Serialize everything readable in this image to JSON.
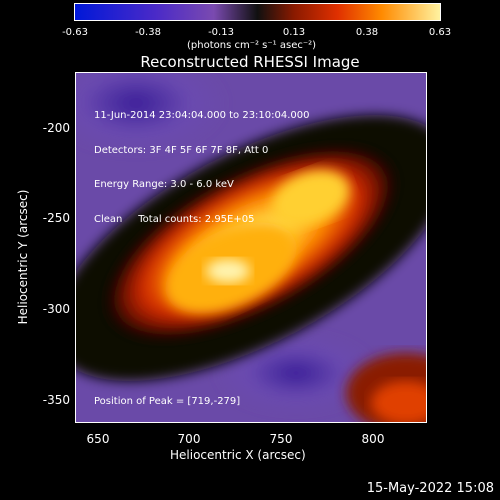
{
  "colorbar": {
    "ticks": [
      "-0.63",
      "-0.38",
      "-0.13",
      "0.13",
      "0.38",
      "0.63"
    ],
    "units": "(photons cm⁻² s⁻¹ asec⁻²)"
  },
  "title": "Reconstructed RHESSI Image",
  "info_lines": [
    "11-Jun-2014 23:04:04.000 to 23:10:04.000",
    "Detectors: 3F 4F 5F 6F 7F 8F, Att 0",
    "Energy Range: 3.0 - 6.0 keV",
    "Clean     Total counts: 2.95E+05"
  ],
  "peak_text": "Position of Peak = [719,-279]",
  "axes": {
    "xlabel": "Heliocentric X (arcsec)",
    "ylabel": "Heliocentric Y (arcsec)",
    "xticks": [
      "650",
      "700",
      "750",
      "800"
    ],
    "yticks": [
      "-200",
      "-250",
      "-300",
      "-350"
    ]
  },
  "timestamp": "15-May-2022 15:08",
  "colors": {
    "background": "#000000",
    "text": "#ffffff",
    "peak": "#fff6b0",
    "negative": "#5a3aa8"
  }
}
